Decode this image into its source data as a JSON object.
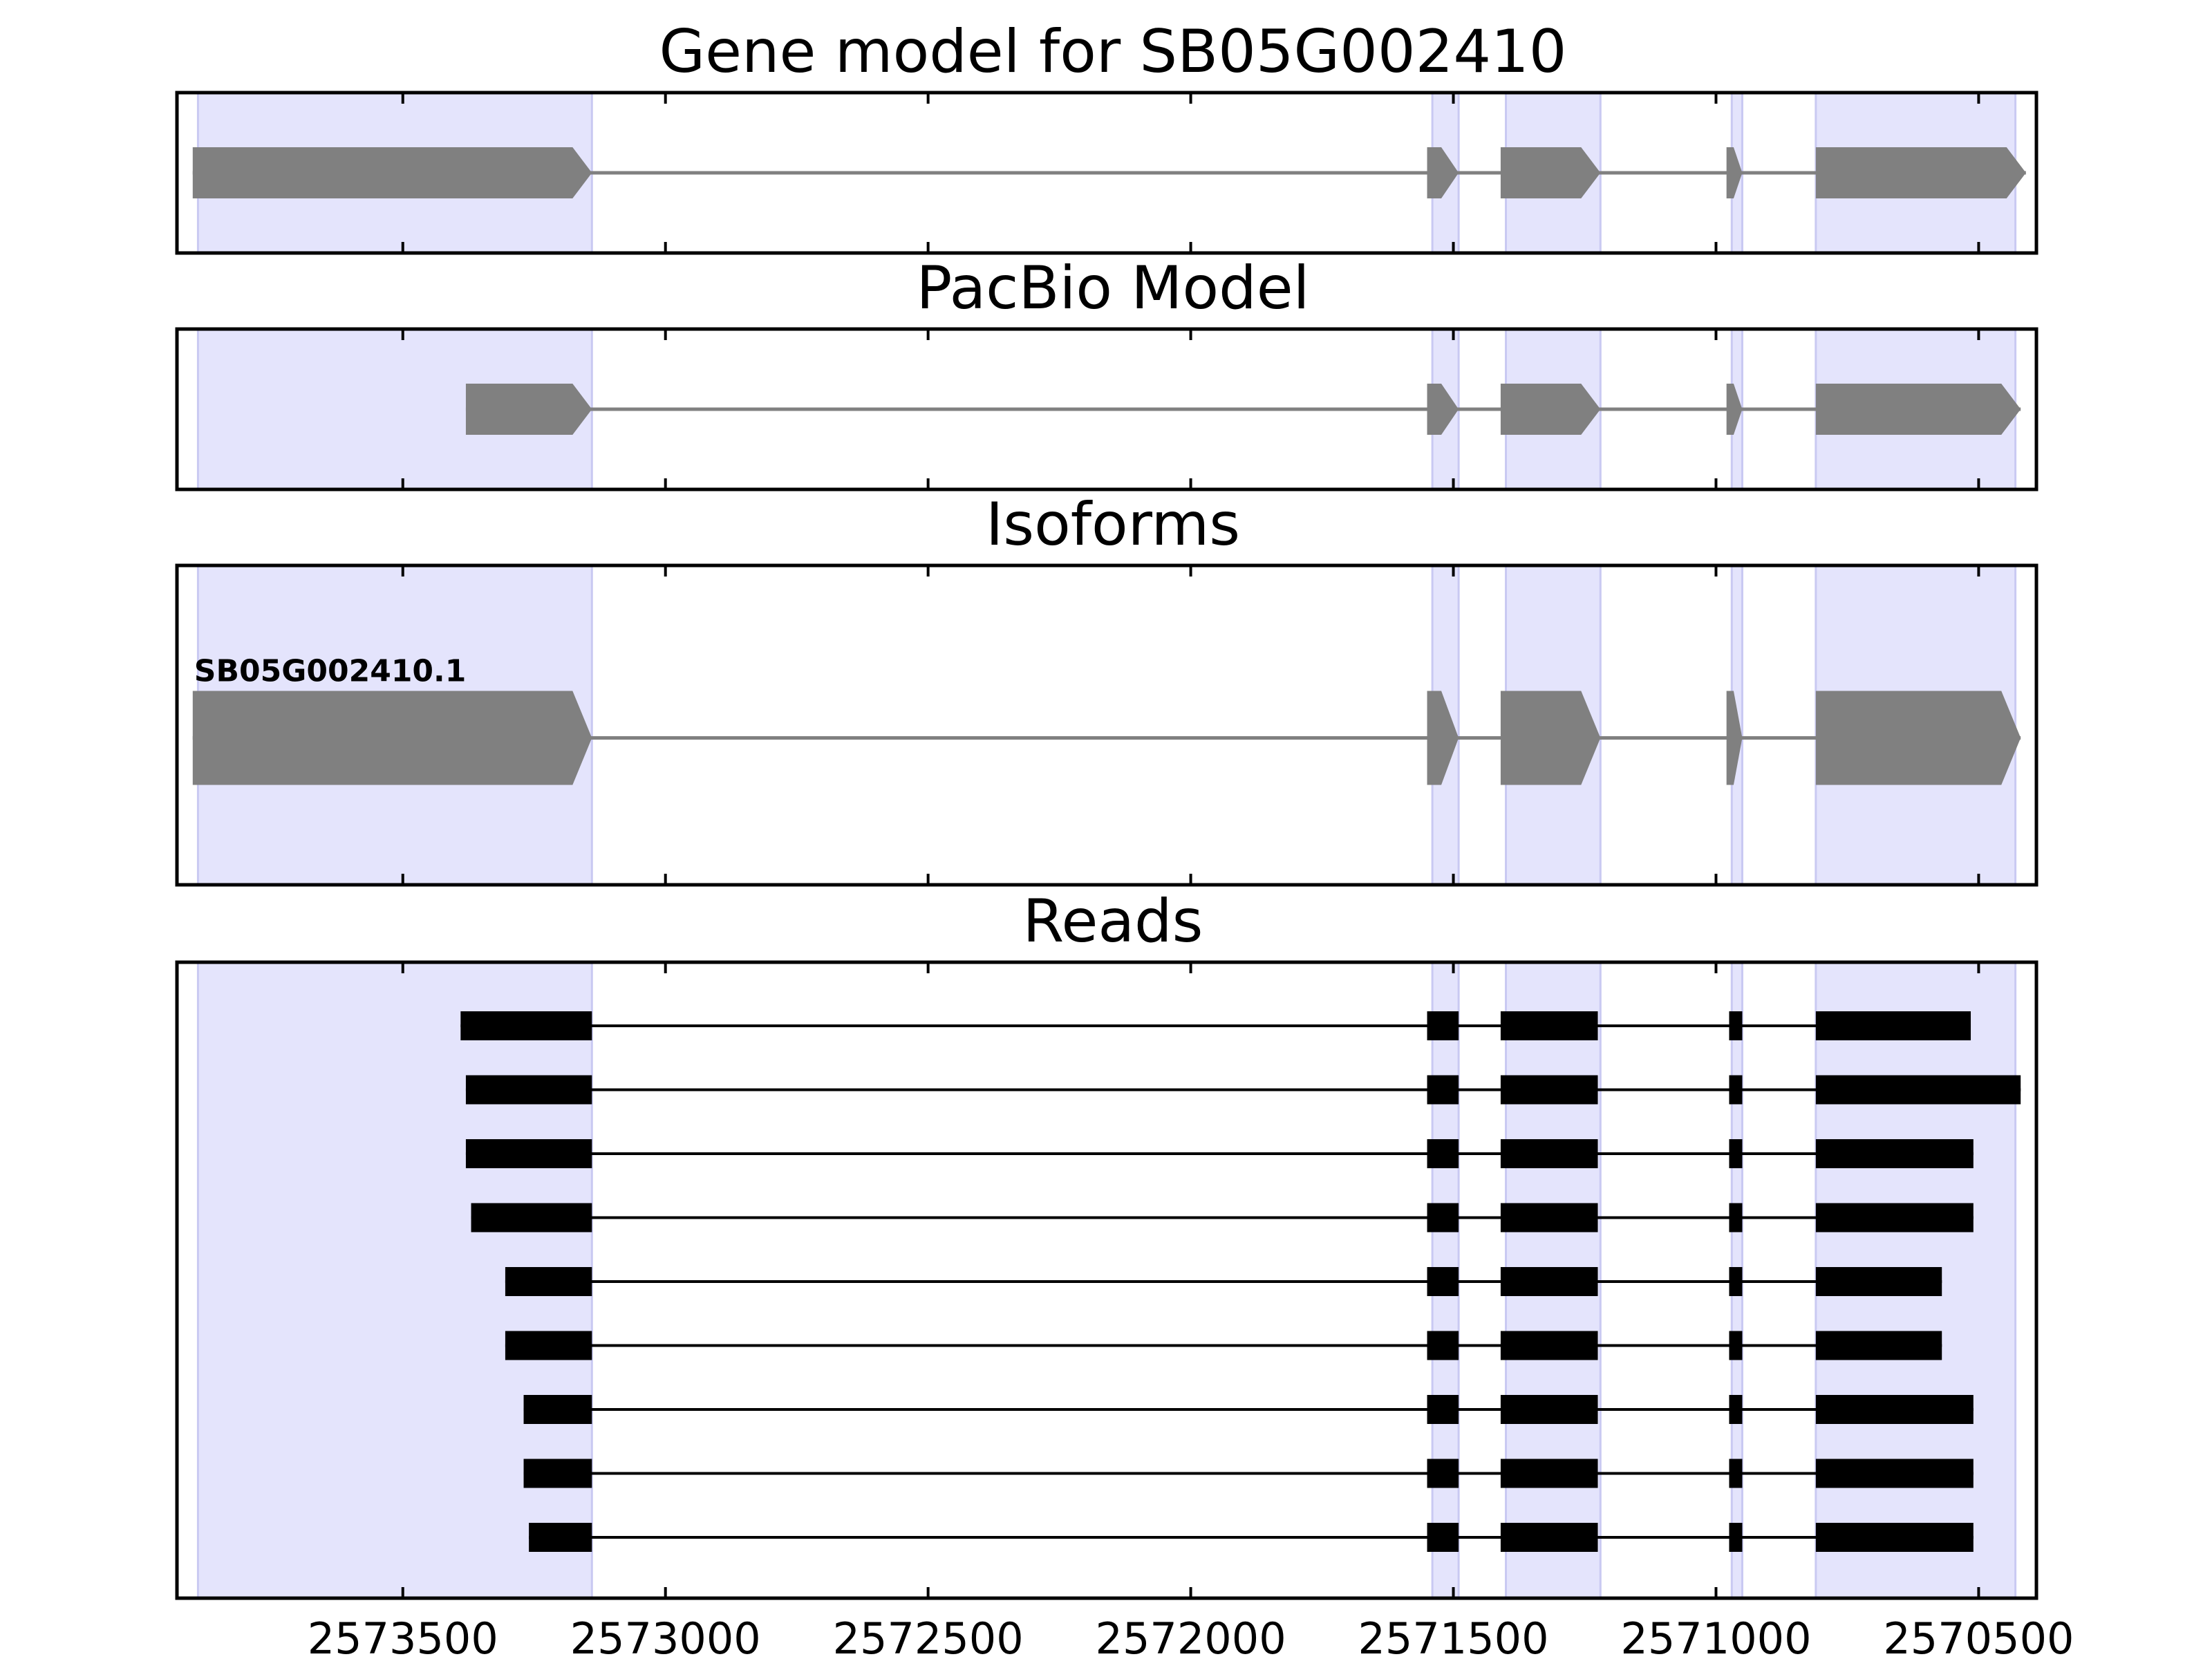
{
  "chart_data": {
    "type": "gene-track",
    "x_ticks": [
      {
        "value": 2573500,
        "label": "2573500"
      },
      {
        "value": 2573000,
        "label": "2573000"
      },
      {
        "value": 2572500,
        "label": "2572500"
      },
      {
        "value": 2572000,
        "label": "2572000"
      },
      {
        "value": 2571500,
        "label": "2571500"
      },
      {
        "value": 2571000,
        "label": "2571000"
      },
      {
        "value": 2570500,
        "label": "2570500"
      }
    ],
    "x_range": [
      2573930,
      2570390
    ],
    "x_reversed": true,
    "shaded_regions": [
      [
        2573890,
        2573140
      ],
      [
        2571540,
        2571490
      ],
      [
        2571400,
        2571220
      ],
      [
        2570970,
        2570950
      ],
      [
        2570810,
        2570430
      ]
    ],
    "colors": {
      "shade": "#e4e4fc",
      "shade_edge": "#c9c9f2",
      "feature": "#808080",
      "read": "#000000",
      "frame": "#000000"
    },
    "panels": [
      {
        "title": "Gene model for SB05G002410",
        "kind": "model",
        "features": [
          {
            "exons": [
              [
                2573900,
                2573140
              ],
              [
                2571550,
                2571490
              ],
              [
                2571410,
                2571220
              ],
              [
                2570980,
                2570950
              ],
              [
                2570810,
                2570410
              ]
            ]
          }
        ]
      },
      {
        "title": "PacBio Model",
        "kind": "model",
        "features": [
          {
            "exons": [
              [
                2573380,
                2573140
              ],
              [
                2571550,
                2571490
              ],
              [
                2571410,
                2571220
              ],
              [
                2570980,
                2570950
              ],
              [
                2570810,
                2570420
              ]
            ]
          }
        ]
      },
      {
        "title": "Isoforms",
        "kind": "model",
        "features": [
          {
            "label": "SB05G002410.1",
            "exons": [
              [
                2573900,
                2573140
              ],
              [
                2571550,
                2571490
              ],
              [
                2571410,
                2571220
              ],
              [
                2570980,
                2570950
              ],
              [
                2570810,
                2570420
              ]
            ]
          }
        ]
      },
      {
        "title": "Reads",
        "kind": "reads",
        "features": [
          {
            "exons": [
              [
                2573390,
                2573140
              ],
              [
                2571550,
                2571490
              ],
              [
                2571410,
                2571225
              ],
              [
                2570975,
                2570950
              ],
              [
                2570810,
                2570515
              ]
            ]
          },
          {
            "exons": [
              [
                2573380,
                2573140
              ],
              [
                2571550,
                2571490
              ],
              [
                2571410,
                2571225
              ],
              [
                2570975,
                2570950
              ],
              [
                2570810,
                2570420
              ]
            ]
          },
          {
            "exons": [
              [
                2573380,
                2573140
              ],
              [
                2571550,
                2571490
              ],
              [
                2571410,
                2571225
              ],
              [
                2570975,
                2570950
              ],
              [
                2570810,
                2570510
              ]
            ]
          },
          {
            "exons": [
              [
                2573370,
                2573140
              ],
              [
                2571550,
                2571490
              ],
              [
                2571410,
                2571225
              ],
              [
                2570975,
                2570950
              ],
              [
                2570810,
                2570510
              ]
            ]
          },
          {
            "exons": [
              [
                2573305,
                2573140
              ],
              [
                2571550,
                2571490
              ],
              [
                2571410,
                2571225
              ],
              [
                2570975,
                2570950
              ],
              [
                2570810,
                2570570
              ]
            ]
          },
          {
            "exons": [
              [
                2573305,
                2573140
              ],
              [
                2571550,
                2571490
              ],
              [
                2571410,
                2571225
              ],
              [
                2570975,
                2570950
              ],
              [
                2570810,
                2570570
              ]
            ]
          },
          {
            "exons": [
              [
                2573270,
                2573140
              ],
              [
                2571550,
                2571490
              ],
              [
                2571410,
                2571225
              ],
              [
                2570975,
                2570950
              ],
              [
                2570810,
                2570510
              ]
            ]
          },
          {
            "exons": [
              [
                2573270,
                2573140
              ],
              [
                2571550,
                2571490
              ],
              [
                2571410,
                2571225
              ],
              [
                2570975,
                2570950
              ],
              [
                2570810,
                2570510
              ]
            ]
          },
          {
            "exons": [
              [
                2573260,
                2573140
              ],
              [
                2571550,
                2571490
              ],
              [
                2571410,
                2571225
              ],
              [
                2570975,
                2570950
              ],
              [
                2570810,
                2570510
              ]
            ]
          }
        ]
      }
    ]
  }
}
